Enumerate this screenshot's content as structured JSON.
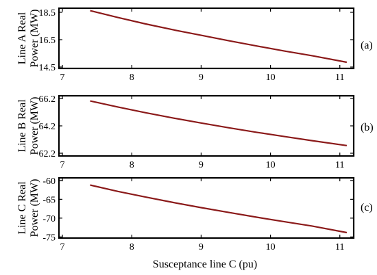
{
  "chart_data": [
    {
      "type": "line",
      "panel_label": "(a)",
      "ylabel_lines": [
        "Line A Real",
        "Power (MW)"
      ],
      "xlim": [
        6.95,
        11.2
      ],
      "ylim": [
        14.4,
        18.8
      ],
      "xticks": [
        7,
        8,
        9,
        10,
        11
      ],
      "yticks": [
        14.5,
        16.5,
        18.5
      ],
      "ytick_labels": [
        "14.5",
        "16.5",
        "18.5"
      ],
      "series": [
        {
          "x": [
            7.4,
            7.8,
            8.2,
            8.6,
            9.0,
            9.4,
            9.8,
            10.2,
            10.6,
            11.1
          ],
          "y": [
            18.62,
            18.12,
            17.65,
            17.22,
            16.82,
            16.42,
            16.04,
            15.67,
            15.33,
            14.85
          ]
        }
      ]
    },
    {
      "type": "line",
      "panel_label": "(b)",
      "ylabel_lines": [
        "Line B Real",
        "Power (MW)"
      ],
      "xlim": [
        6.95,
        11.2
      ],
      "ylim": [
        62.0,
        66.4
      ],
      "xticks": [
        7,
        8,
        9,
        10,
        11
      ],
      "yticks": [
        62.2,
        64.2,
        66.2
      ],
      "ytick_labels": [
        "62.2",
        "64.2",
        "66.2"
      ],
      "series": [
        {
          "x": [
            7.4,
            7.8,
            8.2,
            8.6,
            9.0,
            9.4,
            9.8,
            10.2,
            10.6,
            11.1
          ],
          "y": [
            66.02,
            65.58,
            65.16,
            64.77,
            64.41,
            64.06,
            63.73,
            63.42,
            63.12,
            62.76
          ]
        }
      ]
    },
    {
      "type": "line",
      "panel_label": "(c)",
      "ylabel_lines": [
        "Line C Real",
        "Power (MW)"
      ],
      "xlabel": "Susceptance line C (pu)",
      "xlim": [
        6.95,
        11.2
      ],
      "ylim": [
        -75.3,
        -59.3
      ],
      "xticks": [
        7,
        8,
        9,
        10,
        11
      ],
      "yticks": [
        -75,
        -70,
        -65,
        -60
      ],
      "ytick_labels": [
        "-75",
        "-70",
        "-65",
        "-60"
      ],
      "series": [
        {
          "x": [
            7.4,
            7.8,
            8.2,
            8.6,
            9.0,
            9.4,
            9.8,
            10.2,
            10.6,
            11.1
          ],
          "y": [
            -61.2,
            -62.9,
            -64.4,
            -65.85,
            -67.2,
            -68.5,
            -69.75,
            -70.95,
            -72.1,
            -73.85
          ]
        }
      ]
    }
  ],
  "colors": {
    "line": "#8b1a1a",
    "axes": "#000000"
  }
}
